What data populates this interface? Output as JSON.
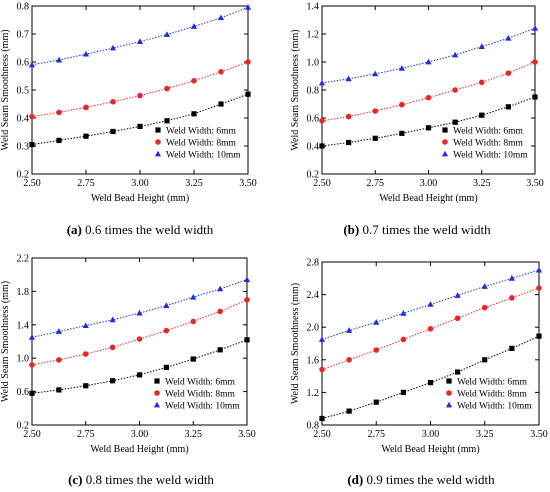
{
  "figure": {
    "panels": [
      {
        "caption_tag": "(a)",
        "caption_text": " 0.6 times the weld width"
      },
      {
        "caption_tag": "(b)",
        "caption_text": " 0.7 times the weld width"
      },
      {
        "caption_tag": "(c)",
        "caption_text": " 0.8 times the weld width"
      },
      {
        "caption_tag": "(d)",
        "caption_text": " 0.9 times the weld width"
      }
    ]
  },
  "chart_data": [
    {
      "type": "scatter",
      "xlabel": "Weld Bead Height (mm)",
      "ylabel": "Weld Seam Smoothness (mm)",
      "xlim": [
        2.5,
        3.5
      ],
      "ylim": [
        0.2,
        0.8
      ],
      "xticks": [
        "2.50",
        "2.75",
        "3.00",
        "3.25",
        "3.50"
      ],
      "yticks": [
        "0.2",
        "0.3",
        "0.4",
        "0.5",
        "0.6",
        "0.7",
        "0.8"
      ],
      "legend_position": "bottom-right",
      "x": [
        2.5,
        2.625,
        2.75,
        2.875,
        3.0,
        3.125,
        3.25,
        3.375,
        3.5
      ],
      "series": [
        {
          "name": "Weld Width: 6mm",
          "marker": "square",
          "color": "#000000",
          "values": [
            0.305,
            0.32,
            0.335,
            0.352,
            0.37,
            0.39,
            0.415,
            0.45,
            0.485
          ]
        },
        {
          "name": "Weld Width: 8mm",
          "marker": "circle",
          "color": "#e8262b",
          "values": [
            0.405,
            0.42,
            0.438,
            0.458,
            0.48,
            0.505,
            0.533,
            0.565,
            0.6
          ]
        },
        {
          "name": "Weld Width: 10mm",
          "marker": "triangle",
          "color": "#1f2fd8",
          "values": [
            0.59,
            0.607,
            0.628,
            0.65,
            0.673,
            0.698,
            0.727,
            0.758,
            0.795
          ]
        }
      ]
    },
    {
      "type": "scatter",
      "xlabel": "Weld Bead Height (mm)",
      "ylabel": "Weld Seam Smoothness (mm)",
      "xlim": [
        2.5,
        3.5
      ],
      "ylim": [
        0.2,
        1.4
      ],
      "xticks": [
        "2.50",
        "2.75",
        "3.00",
        "3.25",
        "3.50"
      ],
      "yticks": [
        "0.2",
        "0.4",
        "0.6",
        "0.8",
        "1.0",
        "1.2",
        "1.4"
      ],
      "legend_position": "bottom-right",
      "x": [
        2.5,
        2.625,
        2.75,
        2.875,
        3.0,
        3.125,
        3.25,
        3.375,
        3.5
      ],
      "series": [
        {
          "name": "Weld Width: 6mm",
          "marker": "square",
          "color": "#000000",
          "values": [
            0.4,
            0.425,
            0.455,
            0.49,
            0.53,
            0.57,
            0.62,
            0.68,
            0.75
          ]
        },
        {
          "name": "Weld Width: 8mm",
          "marker": "circle",
          "color": "#e8262b",
          "values": [
            0.58,
            0.61,
            0.65,
            0.695,
            0.745,
            0.8,
            0.855,
            0.92,
            1.0
          ]
        },
        {
          "name": "Weld Width: 10mm",
          "marker": "triangle",
          "color": "#1f2fd8",
          "values": [
            0.85,
            0.88,
            0.915,
            0.955,
            1.0,
            1.05,
            1.11,
            1.17,
            1.24
          ]
        }
      ]
    },
    {
      "type": "scatter",
      "xlabel": "Weld Bead Height (mm)",
      "ylabel": "Weld Seam Smoothness (mm)",
      "xlim": [
        2.5,
        3.5
      ],
      "ylim": [
        0.2,
        2.2
      ],
      "xticks": [
        "2.50",
        "2.75",
        "3.00",
        "3.25",
        "3.50"
      ],
      "yticks": [
        "0.2",
        "0.6",
        "1.0",
        "1.4",
        "1.8",
        "2.2"
      ],
      "legend_position": "bottom-right",
      "x": [
        2.5,
        2.625,
        2.75,
        2.875,
        3.0,
        3.125,
        3.25,
        3.375,
        3.5
      ],
      "series": [
        {
          "name": "Weld Width: 6mm",
          "marker": "square",
          "color": "#000000",
          "values": [
            0.58,
            0.62,
            0.67,
            0.73,
            0.8,
            0.89,
            0.99,
            1.1,
            1.22
          ]
        },
        {
          "name": "Weld Width: 8mm",
          "marker": "circle",
          "color": "#e8262b",
          "values": [
            0.92,
            0.98,
            1.05,
            1.13,
            1.23,
            1.33,
            1.44,
            1.56,
            1.7
          ]
        },
        {
          "name": "Weld Width: 10mm",
          "marker": "triangle",
          "color": "#1f2fd8",
          "values": [
            1.25,
            1.32,
            1.39,
            1.46,
            1.54,
            1.63,
            1.73,
            1.83,
            1.94
          ]
        }
      ]
    },
    {
      "type": "scatter",
      "xlabel": "Weld Bead Height (mm)",
      "ylabel": "Weld Seam Smoothness (mm)",
      "xlim": [
        2.5,
        3.5
      ],
      "ylim": [
        0.8,
        2.8
      ],
      "xticks": [
        "2.50",
        "2.75",
        "3.00",
        "3.25",
        "3.50"
      ],
      "yticks": [
        "0.8",
        "1.2",
        "1.6",
        "2.0",
        "2.4",
        "2.8"
      ],
      "legend_position": "bottom-right",
      "x": [
        2.5,
        2.625,
        2.75,
        2.875,
        3.0,
        3.125,
        3.25,
        3.375,
        3.5
      ],
      "series": [
        {
          "name": "Weld Width: 6mm",
          "marker": "square",
          "color": "#000000",
          "values": [
            0.88,
            0.97,
            1.08,
            1.2,
            1.32,
            1.45,
            1.6,
            1.74,
            1.89
          ]
        },
        {
          "name": "Weld Width: 8mm",
          "marker": "circle",
          "color": "#e8262b",
          "values": [
            1.48,
            1.6,
            1.72,
            1.85,
            1.98,
            2.11,
            2.24,
            2.36,
            2.48
          ]
        },
        {
          "name": "Weld Width: 10mm",
          "marker": "triangle",
          "color": "#1f2fd8",
          "values": [
            1.85,
            1.96,
            2.06,
            2.17,
            2.28,
            2.39,
            2.5,
            2.6,
            2.7
          ]
        }
      ]
    }
  ]
}
